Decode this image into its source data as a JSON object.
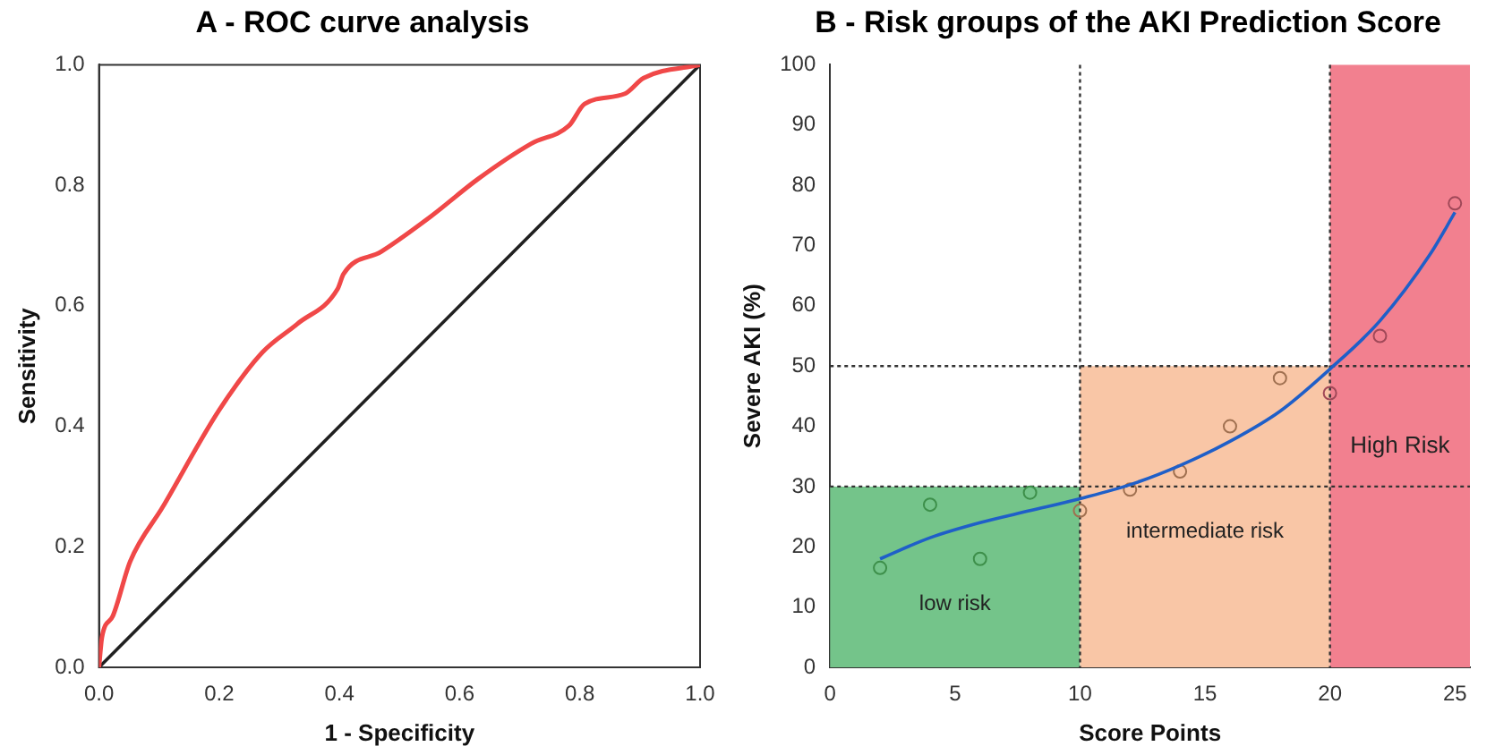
{
  "chart_data": [
    {
      "type": "line",
      "title": "A - ROC curve analysis",
      "xlabel": "1 - Specificity",
      "ylabel": "Sensitivity",
      "xlim": [
        0,
        1
      ],
      "ylim": [
        0,
        1
      ],
      "xticks": [
        {
          "value": 0,
          "label": "0.0"
        },
        0.2,
        0.4,
        0.6,
        0.8,
        {
          "value": 1,
          "label": "1.0"
        }
      ],
      "yticks": [
        {
          "value": 0,
          "label": "0.0"
        },
        0.2,
        0.4,
        0.6,
        0.8,
        {
          "value": 1,
          "label": "1.0"
        }
      ],
      "grid": false,
      "legend": false,
      "series": [
        {
          "color": "#f04848",
          "x": [
            0,
            0.005,
            0.023,
            0.052,
            0.106,
            0.2,
            0.272,
            0.33,
            0.397,
            0.407,
            0.47,
            0.553,
            0.63,
            0.719,
            0.782,
            0.808,
            0.875,
            0.906,
            1
          ],
          "values": [
            0,
            0.05,
            0.085,
            0.176,
            0.266,
            0.427,
            0.523,
            0.57,
            0.628,
            0.653,
            0.69,
            0.749,
            0.81,
            0.869,
            0.899,
            0.935,
            0.952,
            0.978,
            1
          ]
        },
        {
          "color": "#202020",
          "x": [
            0,
            1
          ],
          "values": [
            0,
            1
          ]
        }
      ]
    },
    {
      "type": "scatter",
      "title": "B - Risk groups of the AKI Prediction Score",
      "xlabel": "Score Points",
      "ylabel": "Severe AKI (%)",
      "xlim": [
        0,
        25.6
      ],
      "ylim": [
        0,
        100
      ],
      "xticks": [
        0,
        5,
        10,
        15,
        20,
        25
      ],
      "yticks": [
        0,
        10,
        20,
        30,
        40,
        50,
        60,
        70,
        80,
        90,
        100
      ],
      "grid": false,
      "legend": false,
      "bands": [
        {
          "axis": "x",
          "from": 0,
          "to": 10,
          "color": "#74c48a",
          "label": "low risk"
        },
        {
          "axis": "x",
          "from": 10,
          "to": 20,
          "color": "#f9c6a6",
          "label": "intermediate risk"
        },
        {
          "axis": "x",
          "from": 20,
          "to": 25.6,
          "color": "#f2808f",
          "label": "High Risk"
        }
      ],
      "ref_lines": [
        {
          "axis": "y",
          "value": 30,
          "line_style": "dotted",
          "color": "#333333"
        },
        {
          "axis": "y",
          "value": 50,
          "line_style": "dotted",
          "color": "#333333"
        },
        {
          "axis": "x",
          "value": 10,
          "line_style": "dotted",
          "color": "#333333"
        },
        {
          "axis": "x",
          "value": 20,
          "line_style": "dotted",
          "color": "#333333"
        }
      ],
      "series": [
        {
          "type": "scatter",
          "marker": "circle",
          "x": [
            2,
            4,
            6,
            8,
            10,
            12,
            14,
            16,
            18,
            20,
            22,
            25
          ],
          "values": [
            16.5,
            27,
            18,
            29,
            26,
            29.5,
            32.5,
            40,
            48,
            45.5,
            55,
            77
          ],
          "colors": [
            "#3d8f4a",
            "#3d8f4a",
            "#3d8f4a",
            "#3d8f4a",
            "#a07050",
            "#a07050",
            "#a07050",
            "#a07050",
            "#a07050",
            "#a04858",
            "#a04858",
            "#a04858"
          ]
        },
        {
          "type": "line",
          "color": "#1f5fc8",
          "x": [
            2,
            4,
            6,
            8,
            10,
            12,
            14,
            16,
            18,
            20,
            22,
            24,
            25
          ],
          "values": [
            18,
            21.5,
            24,
            26,
            28,
            30.3,
            33.5,
            37.5,
            42.5,
            49.5,
            57.5,
            68.5,
            75.5
          ]
        }
      ]
    }
  ]
}
